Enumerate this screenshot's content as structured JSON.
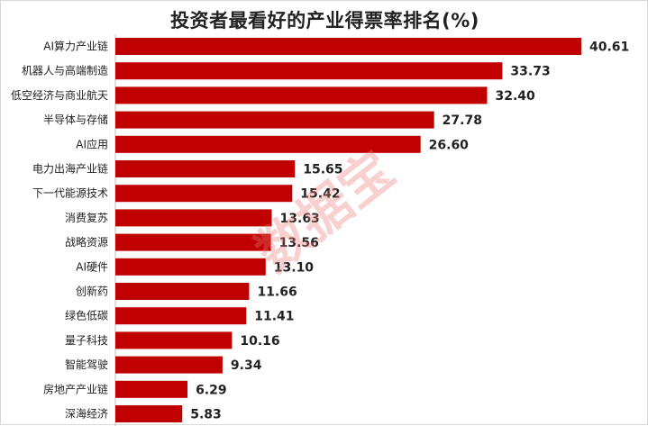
{
  "chart_data": {
    "type": "bar",
    "orientation": "horizontal",
    "title": "投资者最看好的产业得票率排名(%)",
    "categories": [
      "AI算力产业链",
      "机器人与高端制造",
      "低空经济与商业航天",
      "半导体与存储",
      "AI应用",
      "电力出海产业链",
      "下一代能源技术",
      "消费复苏",
      "战略资源",
      "AI硬件",
      "创新药",
      "绿色低碳",
      "量子科技",
      "智能驾驶",
      "房地产产业链",
      "深海经济"
    ],
    "values": [
      40.61,
      33.73,
      32.4,
      27.78,
      26.6,
      15.65,
      15.42,
      13.63,
      13.56,
      13.1,
      11.66,
      11.41,
      10.16,
      9.34,
      6.29,
      5.83
    ],
    "value_labels": [
      "40.61",
      "33.73",
      "32.40",
      "27.78",
      "26.60",
      "15.65",
      "15.42",
      "13.63",
      "13.56",
      "13.10",
      "11.66",
      "11.41",
      "10.16",
      "9.34",
      "6.29",
      "5.83"
    ],
    "bar_color": "#c00000",
    "grid": false,
    "xlim": [
      0,
      40.61
    ]
  },
  "watermark": "数据宝"
}
